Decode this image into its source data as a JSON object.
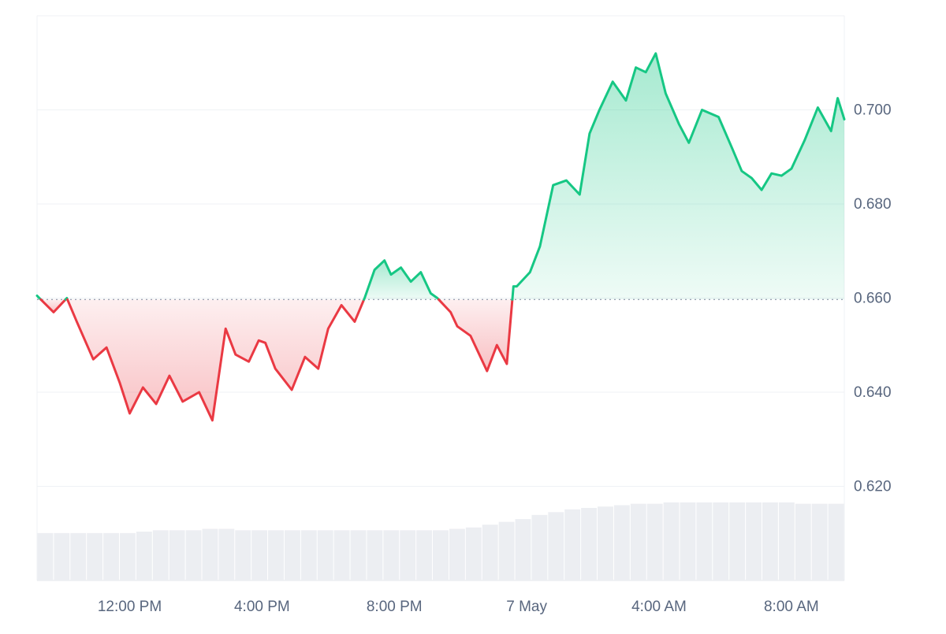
{
  "chart_data": {
    "type": "area",
    "baseline": 0.6597,
    "ylim": [
      0.6,
      0.72
    ],
    "y_ticks": [
      "0.620",
      "0.640",
      "0.660",
      "0.680",
      "0.700"
    ],
    "y_tick_values": [
      0.62,
      0.64,
      0.66,
      0.68,
      0.7
    ],
    "x_ticks": [
      "12:00 PM",
      "4:00 PM",
      "8:00 PM",
      "7 May",
      "4:00 AM",
      "8:00 AM"
    ],
    "x_tick_hours": [
      12,
      16,
      20,
      24,
      28,
      32
    ],
    "x_range_hours": [
      9.2,
      33.6
    ],
    "colors": {
      "up": "#16c784",
      "down": "#ea3943",
      "grid": "#eff2f5",
      "axis_text": "#58667e",
      "volume": "#eceef2"
    },
    "series": [
      {
        "x_hours": [
          9.2,
          9.7,
          10.1,
          10.4,
          10.9,
          11.3,
          11.7,
          12.0,
          12.4,
          12.8,
          13.2,
          13.6,
          14.1,
          14.5,
          14.9,
          15.2,
          15.6,
          15.9,
          16.1,
          16.4,
          16.9,
          17.3,
          17.7,
          18.0,
          18.4,
          18.8,
          19.1,
          19.4,
          19.7,
          19.9,
          20.2,
          20.5,
          20.8,
          21.1,
          21.3,
          21.7,
          21.9,
          22.3,
          22.8,
          23.1,
          23.4,
          23.6,
          23.7,
          24.1,
          24.4,
          24.8,
          25.2,
          25.6,
          25.9,
          26.2,
          26.6,
          27.0,
          27.3,
          27.6,
          27.9,
          28.2,
          28.6,
          28.9,
          29.3,
          29.8,
          30.2,
          30.5,
          30.8,
          31.1,
          31.4,
          31.7,
          32.0,
          32.4,
          32.8,
          33.2,
          33.4,
          33.6
        ],
        "y": [
          0.6605,
          0.657,
          0.66,
          0.655,
          0.647,
          0.6495,
          0.642,
          0.6355,
          0.641,
          0.6375,
          0.6435,
          0.638,
          0.64,
          0.634,
          0.6535,
          0.648,
          0.6465,
          0.651,
          0.6505,
          0.645,
          0.6405,
          0.6475,
          0.645,
          0.6535,
          0.6585,
          0.655,
          0.66,
          0.666,
          0.668,
          0.665,
          0.6665,
          0.6635,
          0.6655,
          0.661,
          0.66,
          0.657,
          0.654,
          0.652,
          0.6445,
          0.65,
          0.646,
          0.6625,
          0.6625,
          0.6655,
          0.671,
          0.684,
          0.685,
          0.682,
          0.695,
          0.7,
          0.706,
          0.702,
          0.709,
          0.708,
          0.712,
          0.7035,
          0.697,
          0.693,
          0.7,
          0.6985,
          0.692,
          0.687,
          0.6855,
          0.683,
          0.6865,
          0.686,
          0.6875,
          0.6935,
          0.7005,
          0.6955,
          0.7025,
          0.698
        ]
      }
    ],
    "volume_relative": [
      0.34,
      0.34,
      0.34,
      0.34,
      0.34,
      0.34,
      0.35,
      0.36,
      0.36,
      0.36,
      0.37,
      0.37,
      0.36,
      0.36,
      0.36,
      0.36,
      0.36,
      0.36,
      0.36,
      0.36,
      0.36,
      0.36,
      0.36,
      0.36,
      0.36,
      0.37,
      0.38,
      0.4,
      0.42,
      0.44,
      0.47,
      0.49,
      0.51,
      0.52,
      0.53,
      0.54,
      0.55,
      0.55,
      0.56,
      0.56,
      0.56,
      0.56,
      0.56,
      0.56,
      0.56,
      0.56,
      0.55,
      0.55,
      0.55
    ]
  }
}
